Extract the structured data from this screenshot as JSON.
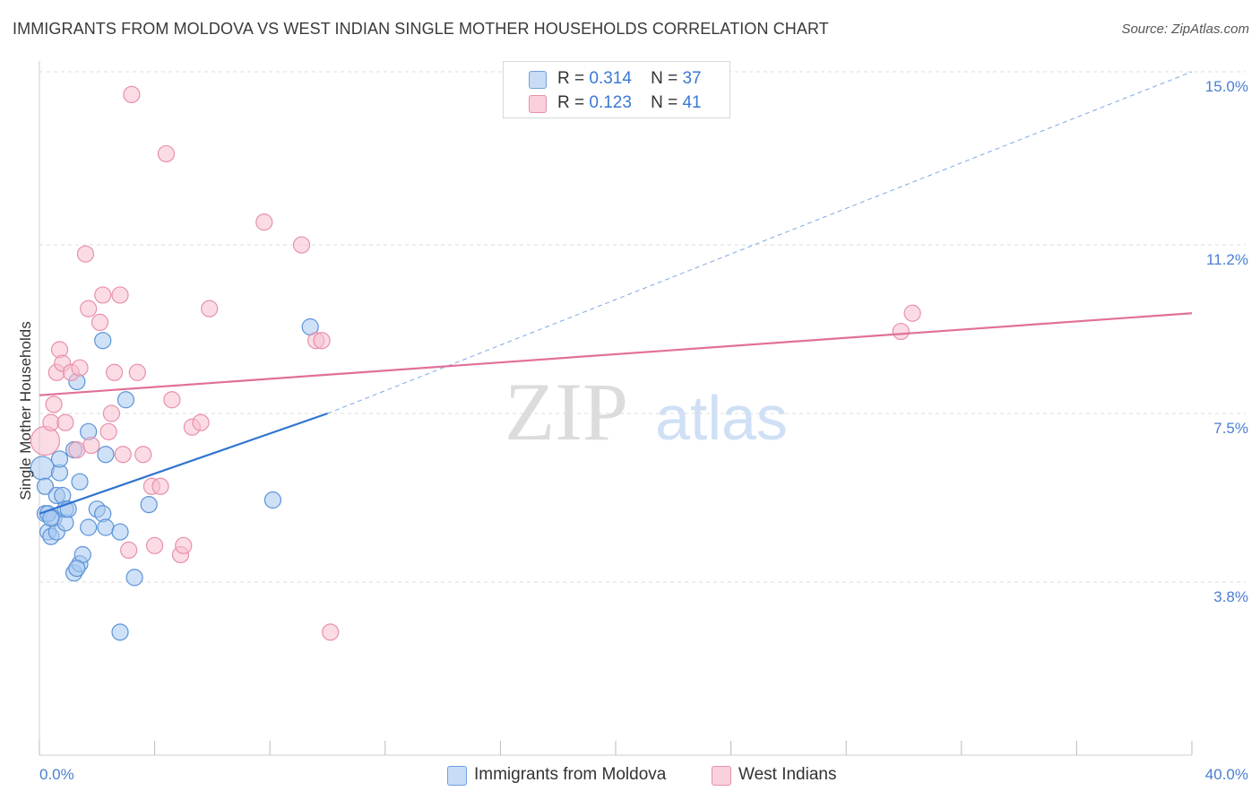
{
  "title": "IMMIGRANTS FROM MOLDOVA VS WEST INDIAN SINGLE MOTHER HOUSEHOLDS CORRELATION CHART",
  "source": "Source: ZipAtlas.com",
  "watermark": {
    "zip": "ZIP",
    "atlas": "atlas"
  },
  "legend": {
    "r_label": "R =",
    "n_label": "N =",
    "rows": [
      {
        "r": "0.314",
        "n": "37",
        "color": "#a8c8f0",
        "edge": "#6fa0e0"
      },
      {
        "r": "0.123",
        "n": "41",
        "color": "#f8c0d0",
        "edge": "#e890aa"
      }
    ]
  },
  "chart_data": {
    "type": "scatter",
    "title": "IMMIGRANTS FROM MOLDOVA VS WEST INDIAN SINGLE MOTHER HOUSEHOLDS CORRELATION CHART",
    "xlabel": "",
    "ylabel": "Single Mother Households",
    "xlim": [
      0,
      40
    ],
    "ylim": [
      0,
      15.5
    ],
    "x_tick_labels": [
      "0.0%",
      "40.0%"
    ],
    "y_ticks": [
      3.8,
      7.5,
      11.2,
      15.0
    ],
    "y_tick_labels": [
      "3.8%",
      "7.5%",
      "11.2%",
      "15.0%"
    ],
    "grid": true,
    "legend_position": "top-center",
    "series": [
      {
        "name": "Immigrants from Moldova",
        "color": "#a8c8f0",
        "edge": "#5b93d8",
        "line_color": "#2f74d0",
        "trend": {
          "x0": 0,
          "y0": 5.3,
          "x1": 10,
          "y1": 7.5,
          "extend_to_x": 40,
          "extend_to_y": 15.0
        },
        "points": [
          [
            0.1,
            6.3
          ],
          [
            0.2,
            5.9
          ],
          [
            0.2,
            5.3
          ],
          [
            0.3,
            4.9
          ],
          [
            0.4,
            4.8
          ],
          [
            0.5,
            5.2
          ],
          [
            0.6,
            5.7
          ],
          [
            0.6,
            4.9
          ],
          [
            0.7,
            6.2
          ],
          [
            0.7,
            6.5
          ],
          [
            0.8,
            5.7
          ],
          [
            0.9,
            5.1
          ],
          [
            0.9,
            5.4
          ],
          [
            1.0,
            5.4
          ],
          [
            1.2,
            4.0
          ],
          [
            1.2,
            6.7
          ],
          [
            1.3,
            8.2
          ],
          [
            1.4,
            4.2
          ],
          [
            1.4,
            6.0
          ],
          [
            1.5,
            4.4
          ],
          [
            1.7,
            7.1
          ],
          [
            1.7,
            5.0
          ],
          [
            2.2,
            9.1
          ],
          [
            2.3,
            6.6
          ],
          [
            2.0,
            5.4
          ],
          [
            2.2,
            5.3
          ],
          [
            2.3,
            5.0
          ],
          [
            2.8,
            2.7
          ],
          [
            2.8,
            4.9
          ],
          [
            3.0,
            7.8
          ],
          [
            3.3,
            3.9
          ],
          [
            3.8,
            5.5
          ],
          [
            8.1,
            5.6
          ],
          [
            9.4,
            9.4
          ],
          [
            0.3,
            5.3
          ],
          [
            1.3,
            4.1
          ],
          [
            0.4,
            5.2
          ]
        ]
      },
      {
        "name": "West Indians",
        "color": "#f8c0d0",
        "edge": "#e890aa",
        "line_color": "#e0709a",
        "trend": {
          "x0": 0,
          "y0": 7.9,
          "x1": 40,
          "y1": 9.7
        },
        "points": [
          [
            0.2,
            6.9
          ],
          [
            0.4,
            7.3
          ],
          [
            0.5,
            7.7
          ],
          [
            0.6,
            8.4
          ],
          [
            0.7,
            8.9
          ],
          [
            0.8,
            8.6
          ],
          [
            0.9,
            7.3
          ],
          [
            1.1,
            8.4
          ],
          [
            1.3,
            6.7
          ],
          [
            1.4,
            8.5
          ],
          [
            1.6,
            11.0
          ],
          [
            1.7,
            9.8
          ],
          [
            1.8,
            6.8
          ],
          [
            2.1,
            9.5
          ],
          [
            2.2,
            10.1
          ],
          [
            2.4,
            7.1
          ],
          [
            2.5,
            7.5
          ],
          [
            2.6,
            8.4
          ],
          [
            2.8,
            10.1
          ],
          [
            2.9,
            6.6
          ],
          [
            3.1,
            4.5
          ],
          [
            3.4,
            8.4
          ],
          [
            3.6,
            6.6
          ],
          [
            3.2,
            14.5
          ],
          [
            3.9,
            5.9
          ],
          [
            4.0,
            4.6
          ],
          [
            4.2,
            5.9
          ],
          [
            4.4,
            13.2
          ],
          [
            4.6,
            7.8
          ],
          [
            4.9,
            4.4
          ],
          [
            5.0,
            4.6
          ],
          [
            5.3,
            7.2
          ],
          [
            5.6,
            7.3
          ],
          [
            5.9,
            9.8
          ],
          [
            7.8,
            11.7
          ],
          [
            9.1,
            11.2
          ],
          [
            9.6,
            9.1
          ],
          [
            9.8,
            9.1
          ],
          [
            10.1,
            2.7
          ],
          [
            29.9,
            9.3
          ],
          [
            30.3,
            9.7
          ]
        ]
      }
    ]
  }
}
